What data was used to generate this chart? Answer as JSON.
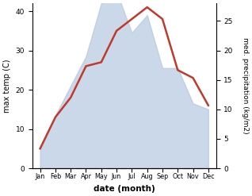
{
  "months": [
    "Jan",
    "Feb",
    "Mar",
    "Apr",
    "May",
    "Jun",
    "Jul",
    "Aug",
    "Sep",
    "Oct",
    "Nov",
    "Dec"
  ],
  "temperature": [
    5,
    13,
    18,
    26,
    27,
    35,
    38,
    41,
    38,
    25,
    23,
    16
  ],
  "precipitation": [
    3,
    9,
    14,
    19,
    28,
    30,
    23,
    26,
    17,
    17,
    11,
    10
  ],
  "temp_ylim": [
    0,
    42
  ],
  "precip_ylim": [
    0,
    28
  ],
  "temp_yticks": [
    0,
    10,
    20,
    30,
    40
  ],
  "precip_yticks": [
    0,
    5,
    10,
    15,
    20,
    25
  ],
  "ylabel_left": "max temp (C)",
  "ylabel_right": "med. precipitation (kg/m2)",
  "xlabel": "date (month)",
  "line_color": "#c0392b",
  "fill_color": "#b0c4de",
  "fill_alpha": 0.65,
  "line_width": 1.8,
  "bg_color": "#ffffff"
}
